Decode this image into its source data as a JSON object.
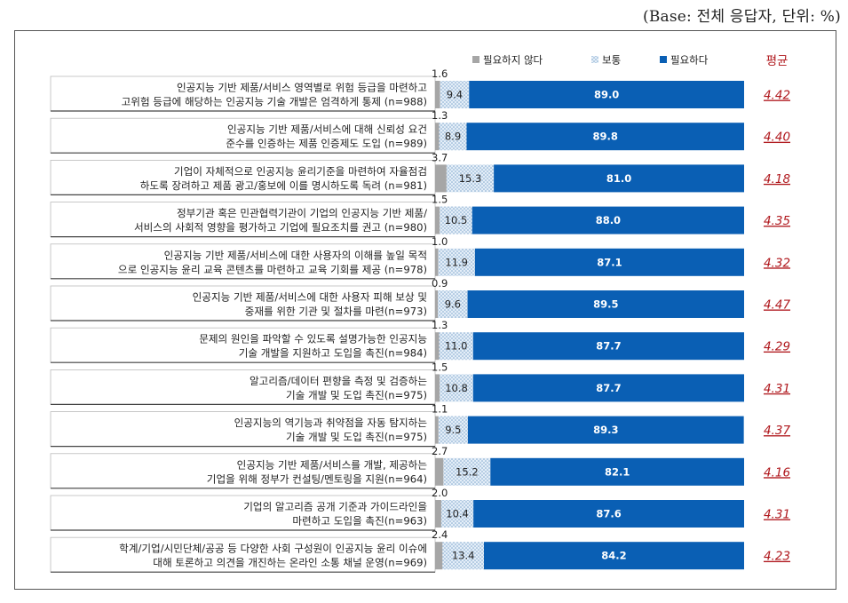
{
  "base_note": "(Base: 전체 응답자, 단위: %)",
  "colors": {
    "not_needed": "#a6a6a6",
    "neutral_bg": "#dfeaf5",
    "neutral_dot": "#7fa6cc",
    "needed": "#0a5fb4",
    "average": "#b0191e"
  },
  "chart_data": {
    "type": "bar",
    "orientation": "horizontal-stacked-100",
    "series": [
      {
        "name": "필요하지 않다",
        "values": [
          1.6,
          1.3,
          3.7,
          1.5,
          1.0,
          0.9,
          1.3,
          1.5,
          1.1,
          2.7,
          2.0,
          2.4
        ]
      },
      {
        "name": "보통",
        "values": [
          9.4,
          8.9,
          15.3,
          10.5,
          11.9,
          9.6,
          11.0,
          10.8,
          9.5,
          15.2,
          10.4,
          13.4
        ]
      },
      {
        "name": "필요하다",
        "values": [
          89.0,
          89.8,
          81.0,
          88.0,
          87.1,
          89.5,
          87.7,
          87.7,
          89.3,
          82.1,
          87.6,
          84.2
        ]
      }
    ],
    "value_labels": {
      "not_needed": [
        "1.6",
        "1.3",
        "3.7",
        "1.5",
        "1.0",
        "0.9",
        "1.3",
        "1.5",
        "1.1",
        "2.7",
        "2.0",
        "2.4"
      ],
      "neutral": [
        "9.4",
        "8.9",
        "15.3",
        "10.5",
        "11.9",
        "9.6",
        "11.0",
        "10.8",
        "9.5",
        "15.2",
        "10.4",
        "13.4"
      ],
      "needed": [
        "89.0",
        "89.8",
        "81.0",
        "88.0",
        "87.1",
        "89.5",
        "87.7",
        "87.7",
        "89.3",
        "82.1",
        "87.6",
        "84.2"
      ]
    },
    "categories": [
      [
        "인공지능 기반 제품/서비스 영역별로 위험 등급을 마련하고",
        "고위험 등급에 해당하는 인공지능 기술 개발은 엄격하게 통제 (n=988)"
      ],
      [
        "인공지능 기반 제품/서비스에 대해 신뢰성 요건",
        "준수를 인증하는 제품 인증제도 도입 (n=989)"
      ],
      [
        "기업이 자체적으로 인공지능 윤리기준을 마련하여 자율점검",
        "하도록 장려하고 제품 광고/홍보에 이를 명시하도록 독려 (n=981)"
      ],
      [
        "정부기관 혹은 민관협력기관이 기업의 인공지능 기반 제품/",
        "서비스의 사회적 영향을 평가하고 기업에 필요조치를 권고 (n=980)"
      ],
      [
        "인공지능 기반 제품/서비스에 대한 사용자의 이해를 높일 목적",
        "으로 인공지능 윤리 교육 콘텐츠를 마련하고 교육 기회를 제공 (n=978)"
      ],
      [
        "인공지능 기반 제품/서비스에 대한 사용자 피해 보상 및",
        "중재를 위한 기관 및 절차를 마련(n=973)"
      ],
      [
        "문제의 원인을 파악할 수 있도록 설명가능한 인공지능",
        "기술 개발을 지원하고 도입을 촉진(n=984)"
      ],
      [
        "알고리즘/데이터 편향을 측정 및 검증하는",
        "기술 개발 및 도입 촉진(n=975)"
      ],
      [
        "인공지능의 역기능과 취약점을 자동 탐지하는",
        "기술 개발 및 도입 촉진(n=975)"
      ],
      [
        "인공지능 기반 제품/서비스를 개발, 제공하는",
        "기업을 위해 정부가 컨설팅/멘토링을 지원(n=964)"
      ],
      [
        "기업의 알고리즘 공개 기준과 가이드라인을",
        "마련하고 도입을 촉진(n=963)"
      ],
      [
        "학계/기업/시민단체/공공 등 다양한 사회 구성원이 인공지능 윤리 이슈에",
        "대해 토론하고 의견을 개진하는 온라인 소통 채널 운영(n=969)"
      ]
    ],
    "average_title": "평균",
    "averages": [
      "4.42",
      "4.40",
      "4.18",
      "4.35",
      "4.32",
      "4.47",
      "4.29",
      "4.31",
      "4.37",
      "4.16",
      "4.31",
      "4.23"
    ],
    "xlim": [
      0,
      100
    ],
    "legend_position": "top"
  }
}
